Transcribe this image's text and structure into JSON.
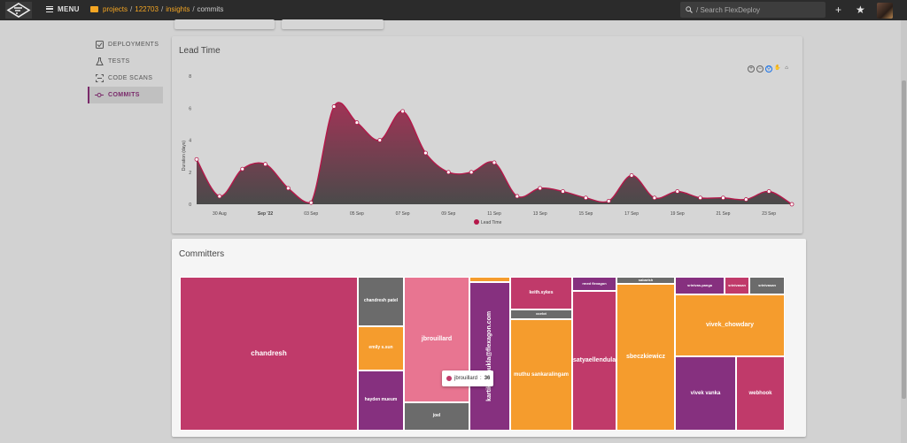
{
  "topbar": {
    "menu_label": "MENU",
    "breadcrumb": [
      "projects",
      "122703",
      "insights",
      "commits"
    ],
    "search_placeholder": "/ Search FlexDeploy",
    "icons": {
      "add": "plus-icon",
      "favorite": "star-icon"
    }
  },
  "sidebar": {
    "items": [
      {
        "label": "DEPLOYMENTS",
        "icon": "deployments-icon",
        "active": false
      },
      {
        "label": "TESTS",
        "icon": "flask-icon",
        "active": false
      },
      {
        "label": "CODE SCANS",
        "icon": "scan-icon",
        "active": false
      },
      {
        "label": "COMMITS",
        "icon": "commit-icon",
        "active": true
      }
    ]
  },
  "lead_time": {
    "title": "Lead Time",
    "chart_data": {
      "type": "area",
      "title": "Lead Time",
      "ylabel": "Duration (days)",
      "xlabel": "",
      "ylim": [
        0,
        8
      ],
      "yticks": [
        0,
        2,
        4,
        6,
        8
      ],
      "xticks": [
        "30 Aug",
        "Sep '22",
        "03 Sep",
        "05 Sep",
        "07 Sep",
        "09 Sep",
        "11 Sep",
        "13 Sep",
        "15 Sep",
        "17 Sep",
        "19 Sep",
        "21 Sep",
        "23 Sep"
      ],
      "series": [
        {
          "name": "Lead Time",
          "color": "#b5184a",
          "values": [
            2.8,
            0.5,
            2.2,
            2.5,
            1.0,
            0.1,
            6.1,
            5.1,
            4.0,
            5.8,
            3.2,
            2.0,
            2.0,
            2.6,
            0.5,
            1.0,
            0.8,
            0.4,
            0.2,
            1.8,
            0.4,
            0.8,
            0.4,
            0.4,
            0.3,
            0.8,
            0.0
          ]
        }
      ],
      "legend": "bottom-center",
      "grid": false
    }
  },
  "committers": {
    "title": "Committers",
    "tooltip": {
      "name": "jbrouillard",
      "value": "36"
    },
    "tiles": [
      {
        "label": "chandresh",
        "color": "#c03a6a"
      },
      {
        "label": "chandresh patel",
        "color": "#6b6b6b"
      },
      {
        "label": "emily s.sun",
        "color": "#f59c2d"
      },
      {
        "label": "hayden mueum",
        "color": "#86307f"
      },
      {
        "label": "jbrouillard",
        "color": "#e87591"
      },
      {
        "label": "joel",
        "color": "#6b6b6b"
      },
      {
        "label": "",
        "color": "#f59c2d"
      },
      {
        "label": "kartikey.shukla@flexagon.com",
        "color": "#86307f"
      },
      {
        "label": "keith.sykes",
        "color": "#c03a6a"
      },
      {
        "label": "ocelot",
        "color": "#6b6b6b"
      },
      {
        "label": "muthu sankaralingam",
        "color": "#f59c2d"
      },
      {
        "label": "rmed flexagon",
        "color": "#86307f"
      },
      {
        "label": "satyaellendula",
        "color": "#c03a6a"
      },
      {
        "label": "sabarish",
        "color": "#6b6b6b"
      },
      {
        "label": "sbeczkiewicz",
        "color": "#f59c2d"
      },
      {
        "label": "srinivas.panga",
        "color": "#86307f"
      },
      {
        "label": "srinivasan",
        "color": "#c03a6a"
      },
      {
        "label": "srinivasan",
        "color": "#6b6b6b"
      },
      {
        "label": "vivek_chowdary",
        "color": "#f59c2d"
      },
      {
        "label": "vivek vanka",
        "color": "#86307f"
      },
      {
        "label": "webhook",
        "color": "#c03a6a"
      }
    ]
  }
}
